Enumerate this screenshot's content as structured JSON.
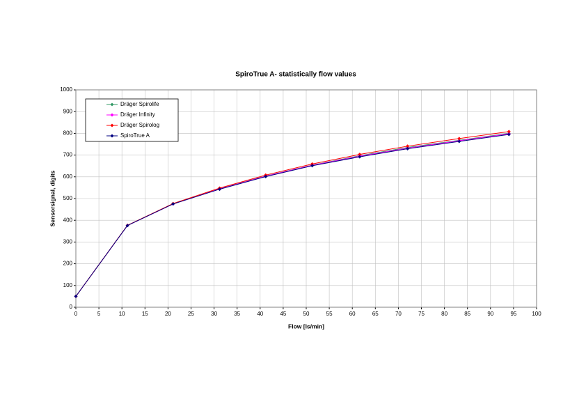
{
  "chart_data": {
    "type": "line",
    "title": "SpiroTrue A- statistically flow values",
    "x_label": "Flow [ls/min]",
    "y_label": "Sensorsignal, digits",
    "x": [
      0,
      11.2,
      21.1,
      31.2,
      41.2,
      51.3,
      61.6,
      72,
      83.2,
      94
    ],
    "series": [
      {
        "name": "Dräger Spirolife",
        "color": "#339966",
        "values": [
          50,
          376,
          476,
          545,
          604,
          654,
          697,
          735,
          768,
          800
        ]
      },
      {
        "name": "Dräger Infinity",
        "color": "#ff00ff",
        "values": [
          50,
          376,
          475,
          544,
          603,
          653,
          695,
          732,
          766,
          798
        ]
      },
      {
        "name": "Dräger Spirolog",
        "color": "#ff0000",
        "values": [
          50,
          377,
          477,
          548,
          608,
          659,
          703,
          741,
          776,
          808
        ]
      },
      {
        "name": "SpiroTrue A",
        "color": "#000080",
        "values": [
          50,
          376,
          475,
          543,
          601,
          651,
          692,
          729,
          763,
          795
        ]
      }
    ],
    "xlim": [
      0,
      100
    ],
    "xticks": [
      0,
      5,
      10,
      15,
      20,
      25,
      30,
      35,
      40,
      45,
      50,
      55,
      60,
      65,
      70,
      75,
      80,
      85,
      90,
      95,
      100
    ],
    "ylim": [
      0,
      1000
    ],
    "yticks": [
      0,
      100,
      200,
      300,
      400,
      500,
      600,
      700,
      800,
      900,
      1000
    ],
    "grid": true,
    "legend": "upper left"
  }
}
